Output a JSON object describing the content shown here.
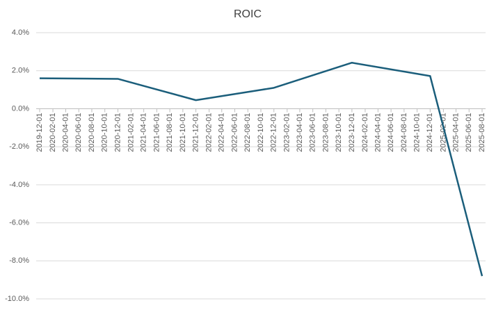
{
  "chart_data": {
    "type": "line",
    "title": "ROIC",
    "x": [
      "2019-12-01",
      "2020-12-01",
      "2021-12-01",
      "2022-12-01",
      "2023-12-01",
      "2024-12-01",
      "2025-08-01"
    ],
    "series": [
      {
        "name": "ROIC",
        "color": "#1b5e7b",
        "values": [
          1.6,
          1.57,
          0.45,
          1.1,
          2.42,
          1.72,
          -8.8
        ]
      }
    ],
    "xlim": [
      "2019-12-01",
      "2025-08-01"
    ],
    "xticks": [
      "2019-12-01",
      "2020-02-01",
      "2020-04-01",
      "2020-06-01",
      "2020-08-01",
      "2020-10-01",
      "2020-12-01",
      "2021-02-01",
      "2021-04-01",
      "2021-06-01",
      "2021-08-01",
      "2021-10-01",
      "2021-12-01",
      "2022-02-01",
      "2022-04-01",
      "2022-06-01",
      "2022-08-01",
      "2022-10-01",
      "2022-12-01",
      "2023-02-01",
      "2023-04-01",
      "2023-06-01",
      "2023-08-01",
      "2023-10-01",
      "2023-12-01",
      "2024-02-01",
      "2024-04-01",
      "2024-06-01",
      "2024-08-01",
      "2024-10-01",
      "2024-12-01",
      "2025-02-01",
      "2025-04-01",
      "2025-06-01",
      "2025-08-01"
    ],
    "ylim": [
      -10,
      4
    ],
    "yticks": [
      {
        "value": -10,
        "label": "-10.0%"
      },
      {
        "value": -8,
        "label": "-8.0%"
      },
      {
        "value": -6,
        "label": "-6.0%"
      },
      {
        "value": -4,
        "label": "-4.0%"
      },
      {
        "value": -2,
        "label": "-2.0%"
      },
      {
        "value": 0,
        "label": "0.0%"
      },
      {
        "value": 2,
        "label": "2.0%"
      },
      {
        "value": 4,
        "label": "4.0%"
      }
    ],
    "grid": true
  }
}
